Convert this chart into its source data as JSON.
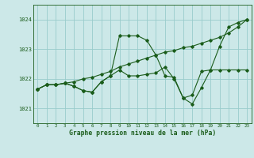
{
  "title": "Graphe pression niveau de la mer (hPa)",
  "bg_color": "#cce8e8",
  "grid_color": "#99cccc",
  "line_color": "#1a5c1a",
  "xlim": [
    -0.5,
    23.5
  ],
  "ylim": [
    1020.5,
    1024.5
  ],
  "yticks": [
    1021,
    1022,
    1023,
    1024
  ],
  "xticks": [
    0,
    1,
    2,
    3,
    4,
    5,
    6,
    7,
    8,
    9,
    10,
    11,
    12,
    13,
    14,
    15,
    16,
    17,
    18,
    19,
    20,
    21,
    22,
    23
  ],
  "series": [
    [
      1021.65,
      1021.8,
      1021.8,
      1021.85,
      1021.75,
      1021.6,
      1021.55,
      1021.9,
      1022.1,
      1023.45,
      1023.45,
      1023.45,
      1023.3,
      1022.8,
      1022.1,
      1022.05,
      1021.35,
      1021.15,
      1021.7,
      1022.3,
      1023.1,
      1023.75,
      1023.9,
      1024.0
    ],
    [
      1021.65,
      1021.8,
      1021.8,
      1021.85,
      1021.9,
      1022.0,
      1022.05,
      1022.15,
      1022.25,
      1022.4,
      1022.5,
      1022.6,
      1022.7,
      1022.8,
      1022.9,
      1022.95,
      1023.05,
      1023.1,
      1023.2,
      1023.3,
      1023.4,
      1023.55,
      1023.75,
      1024.0
    ],
    [
      1021.65,
      1021.8,
      1021.8,
      1021.85,
      1021.75,
      1021.6,
      1021.55,
      1021.9,
      1022.1,
      1022.3,
      1022.1,
      1022.1,
      1022.15,
      1022.2,
      1022.4,
      1022.0,
      1021.35,
      1021.45,
      1022.25,
      1022.3,
      1022.3,
      1022.3,
      1022.3,
      1022.3
    ]
  ]
}
